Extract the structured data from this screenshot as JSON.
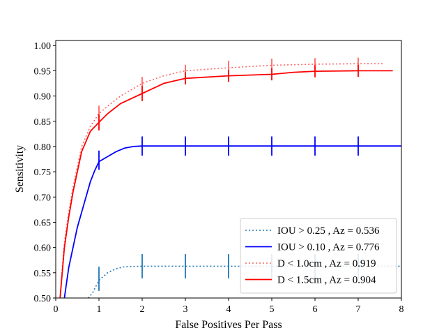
{
  "chart_data": {
    "type": "line",
    "xlabel": "False Positives Per Pass",
    "ylabel": "Sensitivity",
    "xlim": [
      0,
      8
    ],
    "ylim": [
      0.5,
      1.01
    ],
    "xticks": [
      "0",
      "1",
      "2",
      "3",
      "4",
      "5",
      "6",
      "7",
      "8"
    ],
    "yticks": [
      "0.50",
      "0.55",
      "0.60",
      "0.65",
      "0.70",
      "0.75",
      "0.80",
      "0.85",
      "0.90",
      "0.95",
      "1.00"
    ],
    "grid": false,
    "legend_position": "lower-right",
    "series": [
      {
        "name": "IOU > 0.25 , Az = 0.536",
        "color": "#1f77b4",
        "style": "dotted",
        "points": [
          [
            0.75,
            0.5
          ],
          [
            0.85,
            0.51
          ],
          [
            1.0,
            0.535
          ],
          [
            1.2,
            0.55
          ],
          [
            1.4,
            0.558
          ],
          [
            1.6,
            0.562
          ],
          [
            2.0,
            0.563
          ],
          [
            3.0,
            0.563
          ],
          [
            4.0,
            0.563
          ],
          [
            5.0,
            0.563
          ],
          [
            6.0,
            0.563
          ],
          [
            7.0,
            0.563
          ],
          [
            8.0,
            0.563
          ]
        ],
        "error_bars": [
          {
            "x": 1,
            "y": 0.538,
            "err": 0.024
          },
          {
            "x": 2,
            "y": 0.563,
            "err": 0.024
          },
          {
            "x": 3,
            "y": 0.563,
            "err": 0.024
          },
          {
            "x": 4,
            "y": 0.563,
            "err": 0.024
          },
          {
            "x": 5,
            "y": 0.563,
            "err": 0.024
          },
          {
            "x": 6,
            "y": 0.563,
            "err": 0.024
          },
          {
            "x": 7,
            "y": 0.563,
            "err": 0.024
          }
        ]
      },
      {
        "name": "IOU > 0.10 , Az = 0.776",
        "color": "#0000ff",
        "style": "solid",
        "points": [
          [
            0.2,
            0.5
          ],
          [
            0.25,
            0.53
          ],
          [
            0.3,
            0.56
          ],
          [
            0.4,
            0.6
          ],
          [
            0.5,
            0.64
          ],
          [
            0.6,
            0.67
          ],
          [
            0.7,
            0.7
          ],
          [
            0.8,
            0.73
          ],
          [
            0.9,
            0.752
          ],
          [
            1.0,
            0.77
          ],
          [
            1.2,
            0.78
          ],
          [
            1.4,
            0.79
          ],
          [
            1.6,
            0.797
          ],
          [
            1.8,
            0.8
          ],
          [
            2.0,
            0.801
          ],
          [
            8.0,
            0.801
          ]
        ],
        "error_bars": [
          {
            "x": 1,
            "y": 0.773,
            "err": 0.019
          },
          {
            "x": 2,
            "y": 0.801,
            "err": 0.019
          },
          {
            "x": 3,
            "y": 0.801,
            "err": 0.019
          },
          {
            "x": 4,
            "y": 0.801,
            "err": 0.019
          },
          {
            "x": 5,
            "y": 0.801,
            "err": 0.019
          },
          {
            "x": 6,
            "y": 0.801,
            "err": 0.019
          },
          {
            "x": 7,
            "y": 0.801,
            "err": 0.019
          }
        ]
      },
      {
        "name": "D < 1.0cm , Az = 0.919",
        "color": "#ff6666",
        "style": "dotted",
        "points": [
          [
            0.1,
            0.5
          ],
          [
            0.15,
            0.56
          ],
          [
            0.2,
            0.61
          ],
          [
            0.3,
            0.67
          ],
          [
            0.4,
            0.72
          ],
          [
            0.5,
            0.76
          ],
          [
            0.6,
            0.8
          ],
          [
            0.7,
            0.82
          ],
          [
            0.8,
            0.84
          ],
          [
            1.0,
            0.865
          ],
          [
            1.2,
            0.88
          ],
          [
            1.5,
            0.9
          ],
          [
            2.0,
            0.925
          ],
          [
            2.5,
            0.94
          ],
          [
            3.0,
            0.95
          ],
          [
            4.0,
            0.956
          ],
          [
            5.0,
            0.961
          ],
          [
            6.0,
            0.963
          ],
          [
            7.0,
            0.964
          ],
          [
            7.6,
            0.964
          ]
        ],
        "error_bars": [
          {
            "x": 1,
            "y": 0.863,
            "err": 0.018
          },
          {
            "x": 2,
            "y": 0.922,
            "err": 0.016
          },
          {
            "x": 3,
            "y": 0.948,
            "err": 0.014
          },
          {
            "x": 4,
            "y": 0.956,
            "err": 0.014
          },
          {
            "x": 5,
            "y": 0.961,
            "err": 0.013
          },
          {
            "x": 6,
            "y": 0.962,
            "err": 0.013
          },
          {
            "x": 7,
            "y": 0.963,
            "err": 0.013
          }
        ]
      },
      {
        "name": "D < 1.5cm , Az = 0.904",
        "color": "#ff0000",
        "style": "solid",
        "points": [
          [
            0.1,
            0.5
          ],
          [
            0.15,
            0.55
          ],
          [
            0.2,
            0.6
          ],
          [
            0.3,
            0.66
          ],
          [
            0.4,
            0.71
          ],
          [
            0.5,
            0.75
          ],
          [
            0.6,
            0.79
          ],
          [
            0.7,
            0.81
          ],
          [
            0.8,
            0.83
          ],
          [
            1.0,
            0.848
          ],
          [
            1.2,
            0.865
          ],
          [
            1.5,
            0.885
          ],
          [
            2.0,
            0.905
          ],
          [
            2.5,
            0.925
          ],
          [
            3.0,
            0.935
          ],
          [
            4.0,
            0.94
          ],
          [
            5.0,
            0.943
          ],
          [
            5.5,
            0.947
          ],
          [
            6.0,
            0.949
          ],
          [
            7.0,
            0.95
          ],
          [
            7.8,
            0.95
          ]
        ],
        "error_bars": [
          {
            "x": 1,
            "y": 0.848,
            "err": 0.016
          },
          {
            "x": 2,
            "y": 0.905,
            "err": 0.015
          },
          {
            "x": 3,
            "y": 0.935,
            "err": 0.012
          },
          {
            "x": 4,
            "y": 0.94,
            "err": 0.012
          },
          {
            "x": 5,
            "y": 0.943,
            "err": 0.012
          },
          {
            "x": 6,
            "y": 0.949,
            "err": 0.012
          },
          {
            "x": 7,
            "y": 0.95,
            "err": 0.012
          }
        ]
      }
    ]
  }
}
